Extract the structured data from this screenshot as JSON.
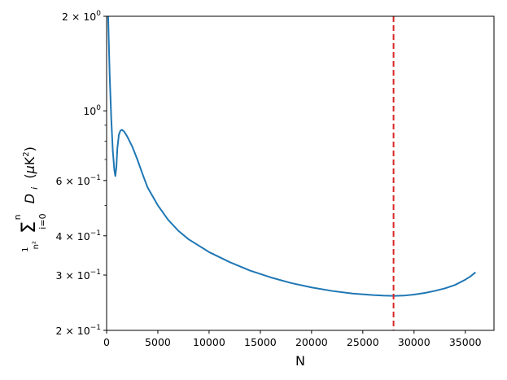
{
  "chart_data": {
    "type": "line",
    "title": "",
    "xlabel": "N",
    "ylabel": "1/n² Σ_{i=0}^{n} D_i (μK²)",
    "yscale": "log",
    "xlim": [
      0,
      37800
    ],
    "ylim": [
      0.2,
      2.0
    ],
    "grid": false,
    "x_ticks": [
      {
        "value": 0,
        "label": "0"
      },
      {
        "value": 5000,
        "label": "5000"
      },
      {
        "value": 10000,
        "label": "10000"
      },
      {
        "value": 15000,
        "label": "15000"
      },
      {
        "value": 20000,
        "label": "20000"
      },
      {
        "value": 25000,
        "label": "25000"
      },
      {
        "value": 30000,
        "label": "30000"
      },
      {
        "value": 35000,
        "label": "35000"
      }
    ],
    "y_ticks": [
      {
        "value": 2.0,
        "base": "2 × 10",
        "exp": "0"
      },
      {
        "value": 1.0,
        "base": "10",
        "exp": "0"
      },
      {
        "value": 0.6,
        "base": "6 × 10",
        "exp": "−1"
      },
      {
        "value": 0.4,
        "base": "4 × 10",
        "exp": "−1"
      },
      {
        "value": 0.3,
        "base": "3 × 10",
        "exp": "−1"
      },
      {
        "value": 0.2,
        "base": "2 × 10",
        "exp": "−1"
      }
    ],
    "y_minor_ticks": [
      0.5,
      0.7,
      0.8,
      0.9
    ],
    "series": [
      {
        "color": "#1f77b4",
        "x": [
          150,
          300,
          450,
          600,
          750,
          850,
          950,
          1050,
          1200,
          1350,
          1500,
          1700,
          2000,
          2500,
          3000,
          3500,
          4000,
          5000,
          6000,
          7000,
          8000,
          10000,
          12000,
          14000,
          16000,
          18000,
          20000,
          22000,
          24000,
          26000,
          27000,
          28000,
          29000,
          30000,
          31000,
          32000,
          33000,
          34000,
          35000,
          35500,
          36000
        ],
        "y": [
          2.0,
          1.3,
          0.95,
          0.75,
          0.65,
          0.62,
          0.66,
          0.76,
          0.84,
          0.865,
          0.87,
          0.86,
          0.83,
          0.77,
          0.7,
          0.63,
          0.57,
          0.5,
          0.45,
          0.415,
          0.39,
          0.355,
          0.33,
          0.31,
          0.295,
          0.283,
          0.274,
          0.267,
          0.262,
          0.259,
          0.258,
          0.2575,
          0.258,
          0.26,
          0.263,
          0.267,
          0.272,
          0.279,
          0.29,
          0.297,
          0.306
        ]
      }
    ],
    "vline": {
      "x": 28000,
      "color": "#d62728",
      "style": "dashed"
    }
  }
}
